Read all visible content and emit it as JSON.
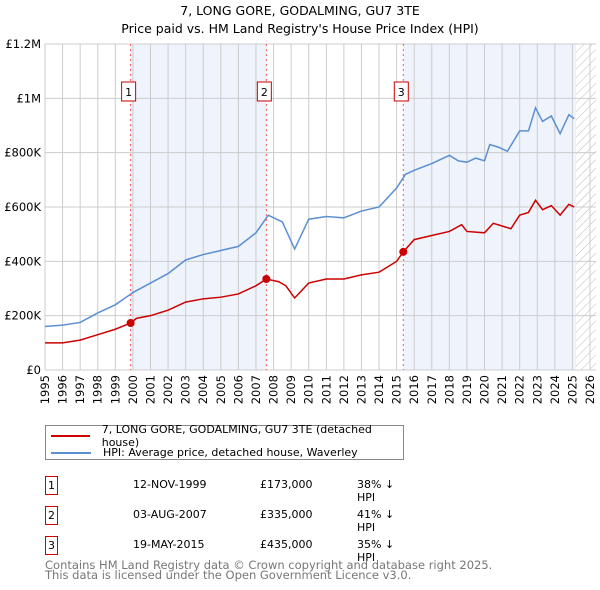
{
  "title": "7, LONG GORE, GODALMING, GU7 3TE",
  "subtitle": "Price paid vs. HM Land Registry's House Price Index (HPI)",
  "colors": {
    "property": "#cc0000",
    "hpi": "#5b8fd4",
    "shade": "#eef3fc",
    "marker_line": "#ff5555"
  },
  "chart_data": {
    "type": "line",
    "xlim": [
      1995,
      2026
    ],
    "ylim": [
      0,
      1200000
    ],
    "y_ticks": [
      0,
      200000,
      400000,
      600000,
      800000,
      1000000,
      1200000
    ],
    "y_tick_labels": [
      "£0",
      "£200K",
      "£400K",
      "£600K",
      "£800K",
      "£1M",
      "£1.2M"
    ],
    "x_tick_labels": [
      "1995",
      "1996",
      "1997",
      "1998",
      "1999",
      "2000",
      "2001",
      "2002",
      "2003",
      "2004",
      "2005",
      "2006",
      "2007",
      "2008",
      "2009",
      "2010",
      "2011",
      "2012",
      "2013",
      "2014",
      "2015",
      "2016",
      "2017",
      "2018",
      "2019",
      "2020",
      "2021",
      "2022",
      "2023",
      "2024",
      "2025",
      "2026"
    ],
    "grid": true,
    "forecast_hatch_from": 2025.2,
    "series": [
      {
        "name": "7, LONG GORE, GODALMING, GU7 3TE (detached house)",
        "x": [
          1995,
          1996,
          1997,
          1998,
          1999,
          1999.87,
          2000.2,
          2001,
          2002,
          2003,
          2004,
          2005,
          2006,
          2007,
          2007.59,
          2008.3,
          2008.7,
          2009.2,
          2010,
          2011,
          2012,
          2013,
          2014,
          2015,
          2015.38,
          2016,
          2017,
          2018,
          2018.7,
          2019,
          2020,
          2020.5,
          2021,
          2021.5,
          2022,
          2022.5,
          2022.9,
          2023.3,
          2023.8,
          2024.3,
          2024.8,
          2025.1
        ],
        "y": [
          100000,
          100000,
          110000,
          130000,
          150000,
          173000,
          190000,
          200000,
          220000,
          250000,
          262000,
          268000,
          280000,
          310000,
          335000,
          325000,
          310000,
          265000,
          320000,
          335000,
          335000,
          350000,
          360000,
          400000,
          435000,
          480000,
          495000,
          510000,
          535000,
          510000,
          505000,
          540000,
          530000,
          520000,
          570000,
          580000,
          625000,
          590000,
          605000,
          570000,
          610000,
          600000
        ]
      },
      {
        "name": "HPI: Average price, detached house, Waverley",
        "x": [
          1995,
          1996,
          1997,
          1998,
          1999,
          2000,
          2001,
          2002,
          2003,
          2004,
          2005,
          2006,
          2007,
          2007.7,
          2008.5,
          2009.2,
          2010,
          2011,
          2012,
          2013,
          2014,
          2015,
          2015.5,
          2016,
          2017,
          2018,
          2018.5,
          2019,
          2019.5,
          2020,
          2020.3,
          2020.8,
          2021.3,
          2022,
          2022.5,
          2022.9,
          2023.3,
          2023.8,
          2024.3,
          2024.8,
          2025.1
        ],
        "y": [
          160000,
          165000,
          175000,
          210000,
          240000,
          285000,
          320000,
          355000,
          405000,
          425000,
          440000,
          455000,
          505000,
          570000,
          545000,
          445000,
          555000,
          565000,
          560000,
          585000,
          600000,
          670000,
          720000,
          735000,
          760000,
          790000,
          770000,
          765000,
          780000,
          770000,
          830000,
          820000,
          805000,
          880000,
          880000,
          965000,
          915000,
          935000,
          870000,
          940000,
          925000
        ]
      }
    ],
    "sales": [
      {
        "label": "1",
        "x": 1999.87,
        "date": "12-NOV-1999",
        "price": 173000,
        "price_label": "£173,000",
        "hpi_diff": "38% ↓ HPI"
      },
      {
        "label": "2",
        "x": 2007.59,
        "date": "03-AUG-2007",
        "price": 335000,
        "price_label": "£335,000",
        "hpi_diff": "41% ↓ HPI"
      },
      {
        "label": "3",
        "x": 2015.38,
        "date": "19-MAY-2015",
        "price": 435000,
        "price_label": "£435,000",
        "hpi_diff": "35% ↓ HPI"
      }
    ]
  },
  "footer": {
    "line1": "Contains HM Land Registry data © Crown copyright and database right 2025.",
    "line2": "This data is licensed under the Open Government Licence v3.0."
  }
}
